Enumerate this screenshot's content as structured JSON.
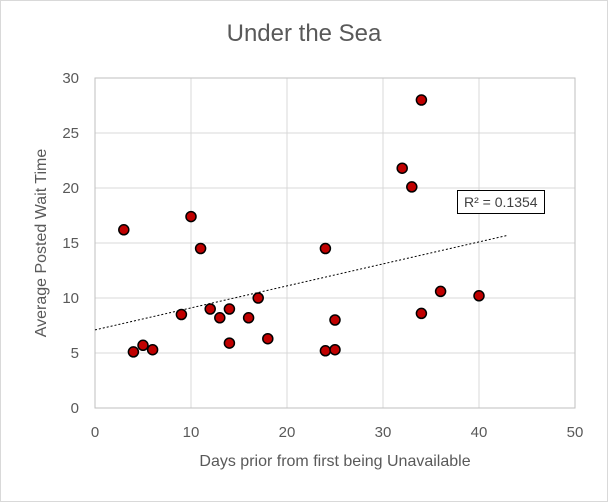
{
  "chart_data": {
    "type": "scatter",
    "title": "Under the Sea",
    "xlabel": "Days prior from first being Unavailable",
    "ylabel": "Average Posted Wait Time",
    "xlim": [
      0,
      50
    ],
    "ylim": [
      0,
      30
    ],
    "x_ticks": [
      "0",
      "10",
      "20",
      "30",
      "40",
      "50"
    ],
    "y_ticks": [
      "0",
      "5",
      "10",
      "15",
      "20",
      "25",
      "30"
    ],
    "grid": true,
    "legend": "none",
    "marker_fill": "#c00000",
    "marker_edge": "#000000",
    "points": [
      {
        "x": 3,
        "y": 16.2
      },
      {
        "x": 4,
        "y": 5.1
      },
      {
        "x": 5,
        "y": 5.7
      },
      {
        "x": 6,
        "y": 5.3
      },
      {
        "x": 9,
        "y": 8.5
      },
      {
        "x": 10,
        "y": 17.4
      },
      {
        "x": 11,
        "y": 14.5
      },
      {
        "x": 12,
        "y": 9.0
      },
      {
        "x": 13,
        "y": 8.2
      },
      {
        "x": 14,
        "y": 9.0
      },
      {
        "x": 14,
        "y": 5.9
      },
      {
        "x": 16,
        "y": 8.2
      },
      {
        "x": 17,
        "y": 10.0
      },
      {
        "x": 18,
        "y": 6.3
      },
      {
        "x": 24,
        "y": 14.5
      },
      {
        "x": 24,
        "y": 5.2
      },
      {
        "x": 25,
        "y": 5.3
      },
      {
        "x": 25,
        "y": 8.0
      },
      {
        "x": 32,
        "y": 21.8
      },
      {
        "x": 33,
        "y": 20.1
      },
      {
        "x": 34,
        "y": 28.0
      },
      {
        "x": 34,
        "y": 8.6
      },
      {
        "x": 36,
        "y": 10.6
      },
      {
        "x": 40,
        "y": 10.2
      }
    ],
    "trendline": {
      "type": "linear",
      "x_range": [
        0,
        43
      ],
      "y_start": 7.1,
      "y_end": 15.7,
      "style": "dotted",
      "label": "R² = 0.1354"
    }
  }
}
